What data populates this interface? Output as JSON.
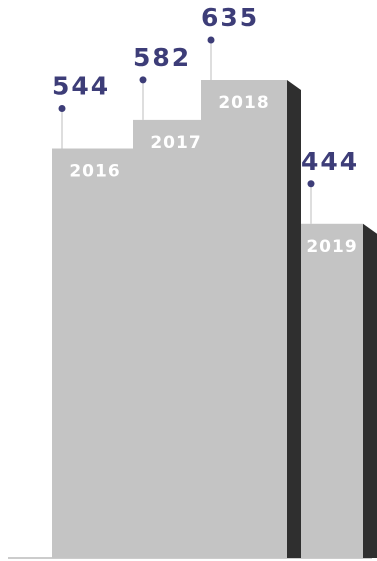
{
  "colors": {
    "bar_front": "#c4c4c4",
    "bar_side": "#2f2f2f",
    "value_text": "#3d3d78",
    "category_text": "#ffffff"
  },
  "chart_data": {
    "type": "bar",
    "style": "3d-stepped-bars",
    "categories": [
      "2016",
      "2017",
      "2018",
      "2019"
    ],
    "values": [
      544,
      582,
      635,
      444
    ],
    "title": "",
    "xlabel": "",
    "ylabel": "",
    "grid": false,
    "legend": "none"
  }
}
